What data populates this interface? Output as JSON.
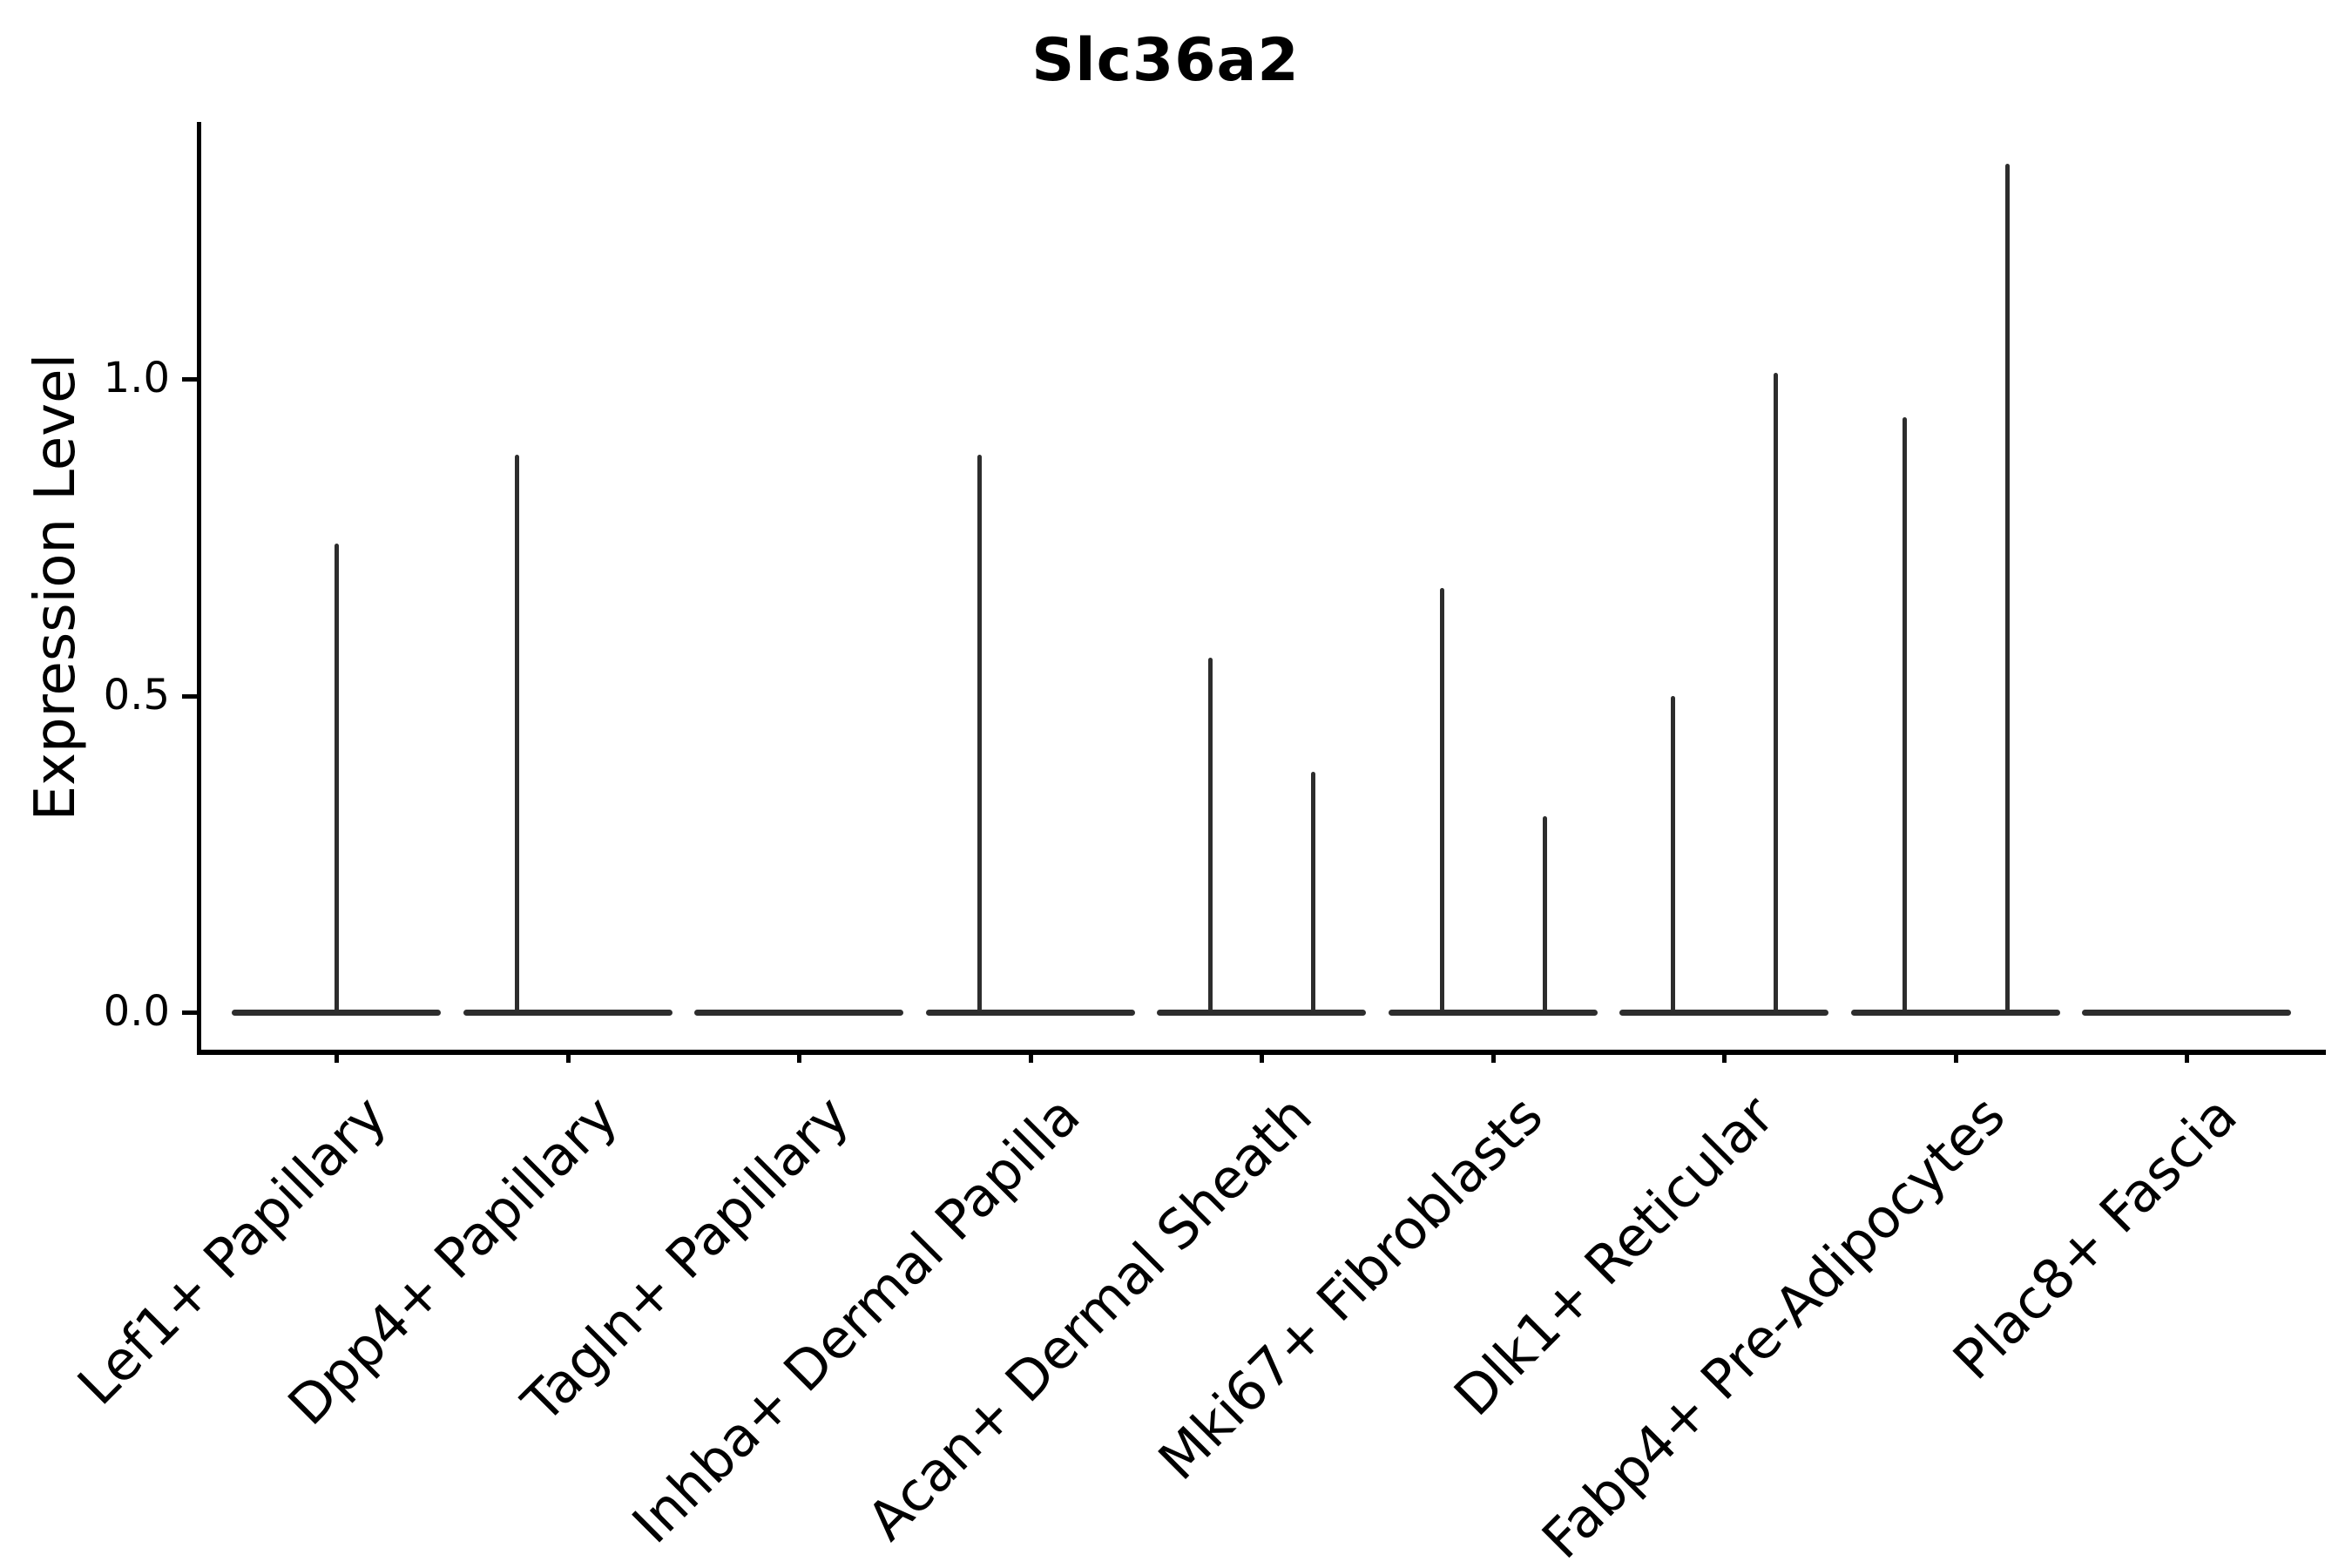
{
  "title": "Slc36a2",
  "y_axis": {
    "label": "Expression Level",
    "ticks": [
      {
        "text": "0.0",
        "value": 0.0
      },
      {
        "text": "0.5",
        "value": 0.5
      },
      {
        "text": "1.0",
        "value": 1.0
      }
    ]
  },
  "colors": {
    "axis": "#000000",
    "violin": "#2d2d2d",
    "background": "#ffffff"
  },
  "chart_data": {
    "type": "violin",
    "title": "Slc36a2",
    "xlabel": "",
    "ylabel": "Expression Level",
    "yticks": [
      0.0,
      0.5,
      1.0
    ],
    "ylim": [
      -0.05,
      1.41
    ],
    "legend": "none",
    "grid": false,
    "description": "Single-cell expression violin plot; each category shows a flat density base at 0 with thin spikes up to the maximum expressing cells. Spike pos: center = category center, left/right = dodged sub-violin at roughly -/+ 0.2 category width.",
    "categories": [
      "Lef1+ Papillary",
      "Dpp4+ Papillary",
      "Tagln+ Papillary",
      "Inhba+ Dermal Papilla",
      "Acan+ Dermal Sheath",
      "Mki67+ Fibroblasts",
      "Dlk1+ Reticular",
      "Fabp4+ Pre-Adipocytes",
      "Plac8+ Fascia"
    ],
    "violins": [
      {
        "category": "Lef1+ Papillary",
        "base_value": 0.0,
        "spikes": [
          {
            "pos": "center",
            "max": 0.74
          }
        ]
      },
      {
        "category": "Dpp4+ Papillary",
        "base_value": 0.0,
        "spikes": [
          {
            "pos": "left",
            "max": 0.88
          }
        ]
      },
      {
        "category": "Tagln+ Papillary",
        "base_value": 0.0,
        "spikes": []
      },
      {
        "category": "Inhba+ Dermal Papilla",
        "base_value": 0.0,
        "spikes": [
          {
            "pos": "left",
            "max": 0.88
          }
        ]
      },
      {
        "category": "Acan+ Dermal Sheath",
        "base_value": 0.0,
        "spikes": [
          {
            "pos": "left",
            "max": 0.56
          },
          {
            "pos": "right",
            "max": 0.38
          }
        ]
      },
      {
        "category": "Mki67+ Fibroblasts",
        "base_value": 0.0,
        "spikes": [
          {
            "pos": "left",
            "max": 0.67
          },
          {
            "pos": "right",
            "max": 0.31
          }
        ]
      },
      {
        "category": "Dlk1+ Reticular",
        "base_value": 0.0,
        "spikes": [
          {
            "pos": "left",
            "max": 0.5
          },
          {
            "pos": "right",
            "max": 1.01
          }
        ]
      },
      {
        "category": "Fabp4+ Pre-Adipocytes",
        "base_value": 0.0,
        "spikes": [
          {
            "pos": "left",
            "max": 0.94
          },
          {
            "pos": "right",
            "max": 1.34
          }
        ]
      },
      {
        "category": "Plac8+ Fascia",
        "base_value": 0.0,
        "spikes": []
      }
    ]
  }
}
